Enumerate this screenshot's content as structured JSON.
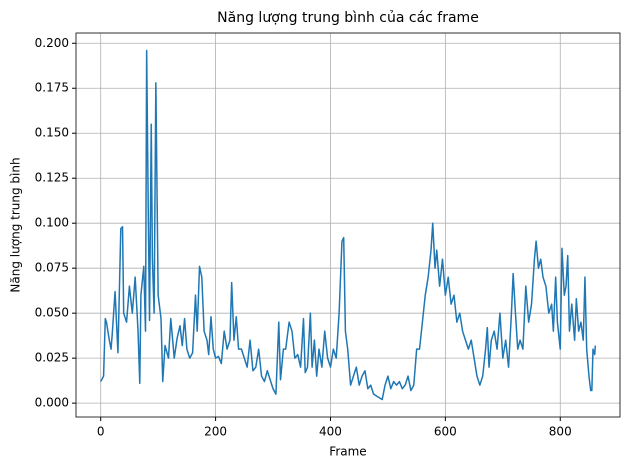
{
  "chart_data": {
    "type": "line",
    "title": "Năng lượng trung bình của các frame",
    "x_label": "Frame",
    "y_label": "Năng lượng trung bình",
    "color": "#1f77b4",
    "grid": true,
    "x": [
      0,
      5,
      8,
      10,
      15,
      18,
      20,
      25,
      30,
      35,
      38,
      40,
      45,
      50,
      55,
      60,
      65,
      68,
      70,
      75,
      78,
      80,
      83,
      85,
      88,
      90,
      93,
      96,
      100,
      105,
      108,
      112,
      118,
      122,
      128,
      133,
      138,
      142,
      146,
      150,
      155,
      160,
      165,
      168,
      172,
      176,
      180,
      185,
      188,
      192,
      196,
      200,
      205,
      210,
      215,
      220,
      225,
      228,
      232,
      236,
      240,
      245,
      250,
      255,
      260,
      265,
      270,
      275,
      280,
      285,
      290,
      295,
      300,
      305,
      310,
      313,
      318,
      322,
      328,
      333,
      338,
      343,
      348,
      353,
      356,
      360,
      365,
      368,
      372,
      376,
      380,
      385,
      390,
      395,
      400,
      405,
      410,
      415,
      420,
      423,
      426,
      430,
      435,
      440,
      445,
      450,
      455,
      460,
      465,
      470,
      475,
      480,
      485,
      490,
      495,
      500,
      505,
      510,
      515,
      520,
      525,
      530,
      535,
      540,
      545,
      550,
      555,
      560,
      565,
      570,
      575,
      578,
      582,
      585,
      590,
      595,
      600,
      605,
      610,
      615,
      620,
      625,
      630,
      635,
      640,
      645,
      650,
      655,
      660,
      665,
      670,
      673,
      676,
      680,
      685,
      690,
      695,
      700,
      705,
      710,
      715,
      718,
      722,
      726,
      730,
      735,
      740,
      745,
      750,
      755,
      758,
      762,
      766,
      770,
      775,
      780,
      785,
      788,
      792,
      795,
      800,
      803,
      807,
      810,
      813,
      816,
      820,
      825,
      828,
      832,
      836,
      840,
      843,
      846,
      850,
      853,
      855,
      857,
      860,
      861
    ],
    "values": [
      0.012,
      0.015,
      0.047,
      0.045,
      0.035,
      0.03,
      0.038,
      0.062,
      0.028,
      0.097,
      0.098,
      0.05,
      0.045,
      0.065,
      0.05,
      0.07,
      0.04,
      0.011,
      0.06,
      0.076,
      0.04,
      0.196,
      0.1,
      0.046,
      0.155,
      0.08,
      0.05,
      0.178,
      0.06,
      0.047,
      0.012,
      0.032,
      0.025,
      0.047,
      0.025,
      0.036,
      0.043,
      0.032,
      0.047,
      0.03,
      0.025,
      0.028,
      0.06,
      0.04,
      0.076,
      0.07,
      0.04,
      0.035,
      0.027,
      0.048,
      0.03,
      0.025,
      0.026,
      0.022,
      0.04,
      0.03,
      0.035,
      0.067,
      0.035,
      0.048,
      0.03,
      0.03,
      0.025,
      0.02,
      0.035,
      0.018,
      0.02,
      0.03,
      0.015,
      0.012,
      0.018,
      0.013,
      0.008,
      0.005,
      0.045,
      0.013,
      0.03,
      0.03,
      0.045,
      0.04,
      0.025,
      0.027,
      0.02,
      0.047,
      0.017,
      0.02,
      0.05,
      0.02,
      0.035,
      0.015,
      0.03,
      0.02,
      0.04,
      0.025,
      0.02,
      0.03,
      0.025,
      0.05,
      0.09,
      0.092,
      0.04,
      0.03,
      0.01,
      0.015,
      0.02,
      0.01,
      0.015,
      0.018,
      0.008,
      0.01,
      0.005,
      0.004,
      0.003,
      0.002,
      0.01,
      0.015,
      0.008,
      0.012,
      0.01,
      0.012,
      0.008,
      0.01,
      0.015,
      0.007,
      0.01,
      0.03,
      0.03,
      0.045,
      0.06,
      0.07,
      0.085,
      0.1,
      0.075,
      0.085,
      0.065,
      0.08,
      0.06,
      0.07,
      0.055,
      0.06,
      0.045,
      0.05,
      0.04,
      0.035,
      0.03,
      0.035,
      0.025,
      0.015,
      0.01,
      0.015,
      0.03,
      0.042,
      0.02,
      0.035,
      0.04,
      0.03,
      0.05,
      0.025,
      0.035,
      0.02,
      0.05,
      0.072,
      0.05,
      0.03,
      0.035,
      0.03,
      0.065,
      0.045,
      0.055,
      0.08,
      0.09,
      0.075,
      0.08,
      0.07,
      0.065,
      0.05,
      0.055,
      0.04,
      0.07,
      0.045,
      0.03,
      0.086,
      0.06,
      0.065,
      0.082,
      0.04,
      0.055,
      0.035,
      0.058,
      0.04,
      0.045,
      0.035,
      0.07,
      0.03,
      0.015,
      0.007,
      0.007,
      0.03,
      0.027,
      0.032
    ],
    "xlim": [
      -43,
      904
    ],
    "xticks": [
      0,
      200,
      400,
      600,
      800
    ],
    "ylim": [
      -0.0077,
      0.2057
    ],
    "yticks": [
      {
        "value": 0,
        "label": "0.000"
      },
      {
        "value": 0.025,
        "label": "0.025"
      },
      {
        "value": 0.05,
        "label": "0.050"
      },
      {
        "value": 0.075,
        "label": "0.075"
      },
      {
        "value": 0.1,
        "label": "0.100"
      },
      {
        "value": 0.125,
        "label": "0.125"
      },
      {
        "value": 0.15,
        "label": "0.150"
      },
      {
        "value": 0.175,
        "label": "0.175"
      },
      {
        "value": 0.2,
        "label": "0.200"
      }
    ]
  }
}
